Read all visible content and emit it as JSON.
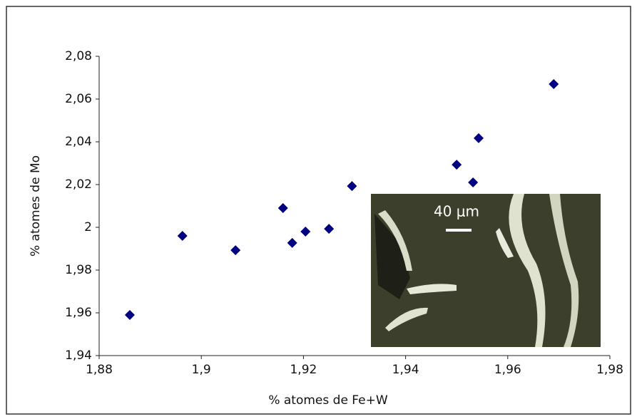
{
  "chart_data": {
    "type": "scatter",
    "x_label": "% atomes de Fe+W",
    "y_label": "% atomes de Mo",
    "series": [
      {
        "name": "Mo",
        "color": "#000080",
        "x": [
          1.886,
          1.8963,
          1.9067,
          1.916,
          1.9178,
          1.9204,
          1.925,
          1.9295,
          1.95,
          1.9532,
          1.9543,
          1.969
        ],
        "values": [
          1.959,
          1.996,
          1.9893,
          2.009,
          1.9927,
          1.998,
          1.9993,
          2.0193,
          2.0293,
          2.021,
          2.0417,
          2.067
        ]
      }
    ],
    "xlim": [
      1.88,
      1.98
    ],
    "xticks": [
      {
        "value": 1.88,
        "label": "1,88"
      },
      {
        "value": 1.9,
        "label": "1,9"
      },
      {
        "value": 1.92,
        "label": "1,92"
      },
      {
        "value": 1.94,
        "label": "1,94"
      },
      {
        "value": 1.96,
        "label": "1,96"
      },
      {
        "value": 1.98,
        "label": "1,98"
      }
    ],
    "ylim": [
      1.94,
      2.08
    ],
    "yticks": [
      {
        "value": 1.94,
        "label": "1,94"
      },
      {
        "value": 1.96,
        "label": "1,96"
      },
      {
        "value": 1.98,
        "label": "1,98"
      },
      2,
      {
        "value": 2.02,
        "label": "2,02"
      },
      {
        "value": 2.04,
        "label": "2,04"
      },
      {
        "value": 2.06,
        "label": "2,06"
      },
      {
        "value": 2.08,
        "label": "2,08"
      }
    ],
    "grid": false,
    "inset_label": "40 μm"
  }
}
